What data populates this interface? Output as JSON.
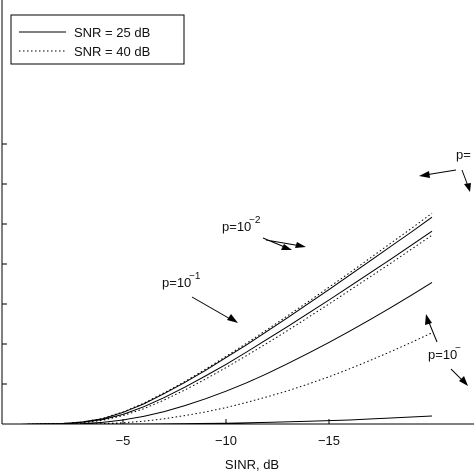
{
  "chart_data": {
    "type": "line",
    "title": "",
    "xlabel": "SINR, dB",
    "ylabel": "",
    "xlim": [
      0,
      -20
    ],
    "ylim": [
      0,
      7.2
    ],
    "x_ticks": [
      -5,
      -10,
      -15
    ],
    "x_tick_labels": [
      "−5",
      "−10",
      "−15"
    ],
    "legend": {
      "position": "top-left",
      "entries": [
        {
          "label": "SNR = 25 dB",
          "style": "solid"
        },
        {
          "label": "SNR = 40 dB",
          "style": "dotted"
        }
      ]
    },
    "annotations": [
      {
        "base": "p=10",
        "exp": "−1"
      },
      {
        "base": "p=10",
        "exp": "−2"
      },
      {
        "base": "p=",
        "exp": ""
      },
      {
        "base": "p=10",
        "exp": "−"
      }
    ],
    "series": [
      {
        "style": "dotted",
        "p_group": 1,
        "x": [
          -2,
          -3,
          -4,
          -5,
          -6,
          -7,
          -8,
          -9,
          -10,
          -11,
          -12,
          -13,
          -14,
          -15,
          -16,
          -17,
          -18,
          -19,
          -20
        ],
        "y": [
          0.01,
          0.05,
          0.14,
          0.3,
          0.52,
          0.78,
          1.06,
          1.37,
          1.69,
          2.02,
          2.36,
          2.71,
          3.06,
          3.42,
          3.78,
          4.15,
          4.52,
          4.89,
          5.27
        ]
      },
      {
        "style": "solid",
        "p_group": 1,
        "x": [
          -2,
          -3,
          -4,
          -5,
          -6,
          -7,
          -8,
          -9,
          -10,
          -11,
          -12,
          -13,
          -14,
          -15,
          -16,
          -17,
          -18,
          -19,
          -20
        ],
        "y": [
          0.01,
          0.05,
          0.13,
          0.29,
          0.5,
          0.76,
          1.04,
          1.34,
          1.66,
          1.98,
          2.32,
          2.66,
          3.01,
          3.36,
          3.72,
          4.08,
          4.44,
          4.8,
          5.17
        ]
      },
      {
        "style": "solid",
        "p_group": 2,
        "x": [
          -2,
          -3,
          -4,
          -5,
          -6,
          -7,
          -8,
          -9,
          -10,
          -11,
          -12,
          -13,
          -14,
          -15,
          -16,
          -17,
          -18,
          -19,
          -20
        ],
        "y": [
          0.01,
          0.04,
          0.11,
          0.24,
          0.43,
          0.66,
          0.92,
          1.2,
          1.49,
          1.8,
          2.12,
          2.44,
          2.77,
          3.1,
          3.44,
          3.78,
          4.12,
          4.47,
          4.82
        ]
      },
      {
        "style": "dotted",
        "p_group": 2,
        "x": [
          -2,
          -3,
          -4,
          -5,
          -6,
          -7,
          -8,
          -9,
          -10,
          -11,
          -12,
          -13,
          -14,
          -15,
          -16,
          -17,
          -18,
          -19,
          -20
        ],
        "y": [
          0.01,
          0.03,
          0.09,
          0.21,
          0.38,
          0.6,
          0.85,
          1.12,
          1.41,
          1.71,
          2.02,
          2.34,
          2.67,
          3.0,
          3.34,
          3.68,
          4.02,
          4.37,
          4.72
        ]
      },
      {
        "style": "solid",
        "p_group": 3,
        "x": [
          -3,
          -4,
          -5,
          -6,
          -7,
          -8,
          -9,
          -10,
          -11,
          -12,
          -13,
          -14,
          -15,
          -16,
          -17,
          -18,
          -19,
          -20
        ],
        "y": [
          0.01,
          0.04,
          0.1,
          0.19,
          0.31,
          0.46,
          0.63,
          0.82,
          1.03,
          1.26,
          1.51,
          1.77,
          2.04,
          2.32,
          2.61,
          2.91,
          3.22,
          3.54
        ]
      },
      {
        "style": "dotted",
        "p_group": 3,
        "x": [
          -4,
          -5,
          -6,
          -7,
          -8,
          -9,
          -10,
          -11,
          -12,
          -13,
          -14,
          -15,
          -16,
          -17,
          -18,
          -19,
          -20
        ],
        "y": [
          0.01,
          0.03,
          0.07,
          0.13,
          0.21,
          0.3,
          0.41,
          0.54,
          0.68,
          0.83,
          1.0,
          1.18,
          1.38,
          1.59,
          1.81,
          2.04,
          2.28
        ]
      },
      {
        "style": "solid",
        "p_group": 4,
        "x": [
          -6,
          -8,
          -10,
          -12,
          -14,
          -16,
          -18,
          -20
        ],
        "y": [
          0.003,
          0.01,
          0.02,
          0.04,
          0.07,
          0.1,
          0.15,
          0.2
        ]
      }
    ]
  }
}
